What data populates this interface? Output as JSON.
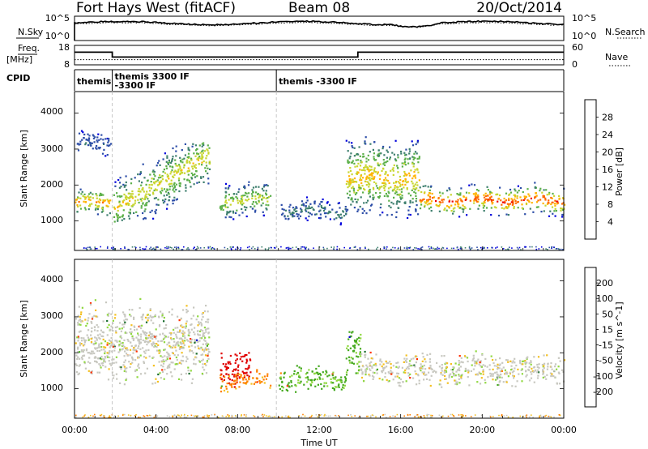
{
  "header": {
    "station": "Fort Hays West (fitACF)",
    "beam": "Beam 08",
    "date": "20/Oct/2014"
  },
  "panels": {
    "nsky": {
      "left_label": "N.Sky",
      "right_label": "N.Search",
      "left_ticks": [
        "10^5",
        "10^0"
      ],
      "right_ticks": [
        "10^5",
        "10^0"
      ]
    },
    "freq": {
      "left_label": "Freq.",
      "left_unit": "[MHz]",
      "right_label": "Nave",
      "left_ticks": [
        "18",
        "8"
      ],
      "right_ticks": [
        "60",
        "0"
      ]
    },
    "cpid": {
      "label": "CPID",
      "segments": [
        {
          "start_hour": 0.0,
          "end_hour": 1.85,
          "lines": [
            "themis"
          ]
        },
        {
          "start_hour": 1.85,
          "end_hour": 9.9,
          "lines": [
            "themis 3300 IF",
            "-3300 IF"
          ]
        },
        {
          "start_hour": 9.9,
          "end_hour": 24.0,
          "lines": [
            "themis -3300 IF"
          ]
        }
      ]
    },
    "power": {
      "ylabel": "Slant Range [km]",
      "y_ticks": [
        "1000",
        "2000",
        "3000",
        "4000"
      ],
      "colorbar_label": "Power [dB]",
      "colorbar_ticks": [
        "4",
        "8",
        "12",
        "16",
        "20",
        "24",
        "28"
      ],
      "colors": [
        "#0000dd",
        "#2d4ea8",
        "#3e7f6e",
        "#5cb04a",
        "#c8d630",
        "#ffb400",
        "#ff6a00",
        "#ee0000"
      ]
    },
    "velocity": {
      "ylabel": "Slant Range [km]",
      "y_ticks": [
        "1000",
        "2000",
        "3000",
        "4000"
      ],
      "colorbar_label": "Velocity [m s^-1]",
      "colorbar_ticks": [
        "200",
        "100",
        "50",
        "15",
        "-15",
        "-50",
        "-100",
        "-200"
      ],
      "colors": [
        "#0000cc",
        "#1a6c2c",
        "#44a81e",
        "#90d840",
        "#c8c8c0",
        "#f4c020",
        "#ff8000",
        "#ff3000",
        "#e00000"
      ]
    }
  },
  "x_axis": {
    "label": "Time UT",
    "ticks": [
      "00:00",
      "04:00",
      "08:00",
      "12:00",
      "16:00",
      "20:00",
      "00:00"
    ]
  },
  "chart_data": {
    "type": "heatmap",
    "title": "Fort Hays West (fitACF)",
    "xlabel": "Time UT",
    "ylabel": "Slant Range [km]",
    "xlim_hours": [
      0,
      24
    ],
    "ylim_km": [
      180,
      4600
    ],
    "grid": false,
    "freq_mhz_steps": [
      {
        "start_hour": 0.0,
        "end_hour": 1.85,
        "value": 14.5
      },
      {
        "start_hour": 1.85,
        "end_hour": 13.9,
        "value": 12.0
      },
      {
        "start_hour": 13.9,
        "end_hour": 24.0,
        "value": 14.5
      }
    ],
    "nave_mean": 16,
    "nsky_mean_log": 3.6,
    "nsearch_mean_log": 3.4,
    "power_regions": [
      {
        "t0": 0.0,
        "t1": 1.8,
        "r0": 1100,
        "r1": 1950,
        "peak_db": 22
      },
      {
        "t0": 0.1,
        "t1": 1.8,
        "r0": 2800,
        "r1": 3500,
        "peak_db": 6
      },
      {
        "t0": 1.9,
        "t1": 6.6,
        "r0": 1200,
        "r1": 3000,
        "peak_db": 18
      },
      {
        "t0": 7.1,
        "t1": 9.6,
        "r0": 1050,
        "r1": 2150,
        "peak_db": 16
      },
      {
        "t0": 10.0,
        "t1": 13.3,
        "r0": 950,
        "r1": 1650,
        "peak_db": 8
      },
      {
        "t0": 13.3,
        "t1": 16.9,
        "r0": 1050,
        "r1": 3400,
        "peak_db": 20
      },
      {
        "t0": 16.9,
        "t1": 24.0,
        "r0": 1150,
        "r1": 2050,
        "peak_db": 26
      }
    ],
    "velocity_regions": [
      {
        "t0": 0.0,
        "t1": 6.6,
        "r0": 1100,
        "r1": 3500,
        "v_ms": 0
      },
      {
        "t0": 7.1,
        "t1": 8.6,
        "r0": 1050,
        "r1": 2150,
        "v_ms": -220
      },
      {
        "t0": 7.1,
        "t1": 9.6,
        "r0": 950,
        "r1": 1500,
        "v_ms": -60
      },
      {
        "t0": 10.0,
        "t1": 13.3,
        "r0": 900,
        "r1": 1700,
        "v_ms": 60
      },
      {
        "t0": 13.3,
        "t1": 14.0,
        "r0": 1300,
        "r1": 2900,
        "v_ms": 60
      },
      {
        "t0": 14.0,
        "t1": 24.0,
        "r0": 1050,
        "r1": 2050,
        "v_ms": 0
      }
    ]
  }
}
